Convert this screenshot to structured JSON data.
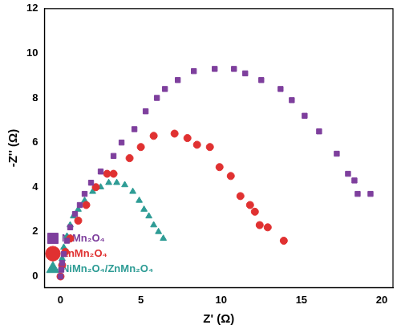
{
  "chart_data": {
    "type": "scatter",
    "x_label": "Z' (Ω)",
    "y_label": "-Z'' (Ω)",
    "xlim": [
      -1,
      20.7
    ],
    "ylim": [
      -0.5,
      12
    ],
    "xticks": [
      0,
      5,
      10,
      15,
      20
    ],
    "yticks": [
      0,
      2,
      4,
      6,
      8,
      10,
      12
    ],
    "grid": false,
    "legend": "upper right",
    "series": [
      {
        "name": "NiMn₂O₄",
        "color": "#7e3f9d",
        "marker": "square",
        "x": [
          0,
          0.05,
          0.1,
          0.2,
          0.4,
          0.6,
          0.9,
          1.2,
          1.5,
          1.9,
          2.5,
          3.3,
          3.8,
          4.6,
          5.3,
          6.0,
          6.5,
          7.3,
          8.3,
          9.6,
          10.8,
          11.5,
          12.5,
          13.7,
          14.4,
          15.2,
          16.1,
          17.2,
          17.9,
          18.3,
          18.5,
          19.3
        ],
        "values": [
          0,
          0.3,
          0.6,
          1.0,
          1.6,
          2.2,
          2.8,
          3.2,
          3.7,
          4.2,
          4.7,
          5.4,
          6.0,
          6.6,
          7.4,
          8.0,
          8.4,
          8.8,
          9.2,
          9.3,
          9.3,
          9.1,
          8.8,
          8.4,
          7.9,
          7.2,
          6.5,
          5.5,
          4.6,
          4.3,
          3.7,
          3.7
        ]
      },
      {
        "name": "ZnMn₂O₄",
        "color": "#e03131",
        "marker": "circle",
        "x": [
          0,
          0.1,
          0.3,
          0.6,
          1.1,
          1.6,
          2.2,
          2.9,
          3.3,
          4.3,
          5.0,
          5.8,
          7.1,
          7.9,
          8.5,
          9.3,
          9.9,
          10.6,
          11.2,
          11.8,
          12.1,
          12.4,
          12.9,
          13.9
        ],
        "values": [
          0,
          0.5,
          1.1,
          1.7,
          2.5,
          3.2,
          4.0,
          4.6,
          4.6,
          5.3,
          5.8,
          6.3,
          6.4,
          6.2,
          5.9,
          5.8,
          4.9,
          4.5,
          3.6,
          3.2,
          2.9,
          2.3,
          2.2,
          1.6
        ]
      },
      {
        "name": "NiMn₂O₄/ZnMn₂O₄",
        "color": "#2e9c95",
        "marker": "triangle",
        "x": [
          0,
          0.05,
          0.1,
          0.2,
          0.4,
          0.6,
          0.8,
          1.1,
          1.5,
          2.0,
          2.5,
          3.0,
          3.5,
          4.0,
          4.5,
          4.9,
          5.2,
          5.5,
          5.8,
          6.1,
          6.4
        ],
        "values": [
          0,
          0.4,
          0.8,
          1.3,
          1.8,
          2.3,
          2.7,
          3.0,
          3.4,
          3.8,
          4.0,
          4.2,
          4.2,
          4.1,
          3.8,
          3.4,
          3.0,
          2.7,
          2.3,
          2.0,
          1.7
        ]
      }
    ]
  }
}
